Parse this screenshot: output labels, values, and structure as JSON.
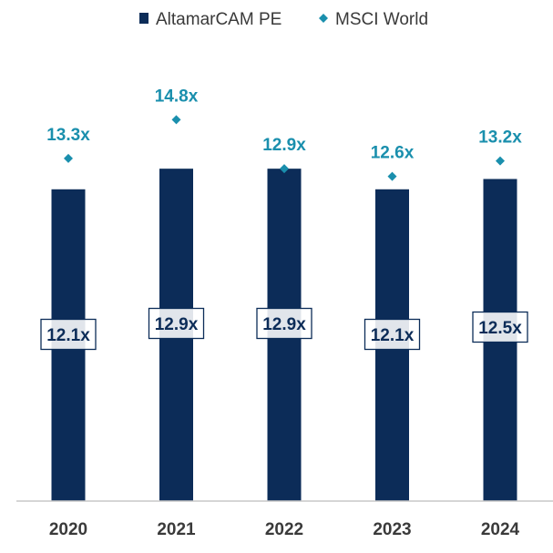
{
  "colors": {
    "altamar": "#0c2c58",
    "msci": "#1a8fad",
    "axis": "#c8c8c8",
    "text": "#3a3a3a"
  },
  "chart_data": {
    "type": "bar",
    "categories": [
      "2020",
      "2021",
      "2022",
      "2023",
      "2024"
    ],
    "series": [
      {
        "name": "AltamarCAM PE",
        "kind": "bar",
        "values": [
          12.1,
          12.9,
          12.9,
          12.1,
          12.5
        ],
        "labels": [
          "12.1x",
          "12.9x",
          "12.9x",
          "12.1x",
          "12.5x"
        ]
      },
      {
        "name": "MSCI World",
        "kind": "marker",
        "marker": "diamond",
        "values": [
          13.3,
          14.8,
          12.9,
          12.6,
          13.2
        ],
        "labels": [
          "13.3x",
          "14.8x",
          "12.9x",
          "12.6x",
          "13.2x"
        ]
      }
    ],
    "legend": {
      "position": "top",
      "items": [
        "AltamarCAM PE",
        "MSCI World"
      ]
    },
    "ylim": [
      0,
      16.3
    ],
    "grid": false
  }
}
